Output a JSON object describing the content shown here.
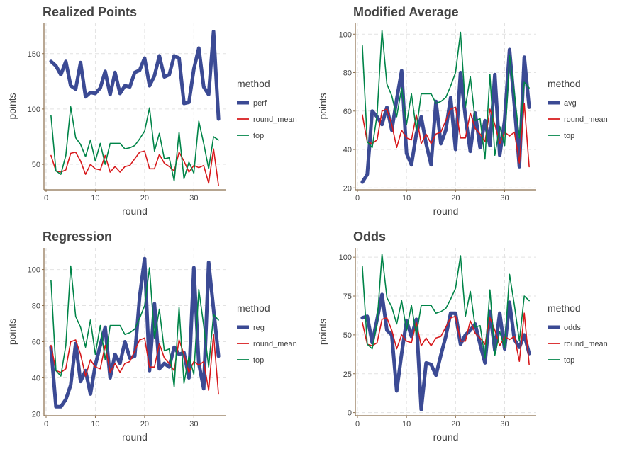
{
  "colors": {
    "primary": "#3b4a94",
    "round_mean": "#d7191c",
    "top": "#008448",
    "axis": "#8b6f4e",
    "grid": "#e2e2e2",
    "text": "#444444"
  },
  "chart_data": [
    {
      "type": "line",
      "title": "Realized Points",
      "xlabel": "round",
      "ylabel": "points",
      "xlim": [
        0,
        36
      ],
      "ylim": [
        27,
        178
      ],
      "xticks": [
        0,
        10,
        20,
        30
      ],
      "yticks": [
        50,
        100,
        150
      ],
      "grid": true,
      "legend": {
        "title": "method",
        "position": "right"
      },
      "x": [
        1,
        2,
        3,
        4,
        5,
        6,
        7,
        8,
        9,
        10,
        11,
        12,
        13,
        14,
        15,
        16,
        17,
        18,
        19,
        20,
        21,
        22,
        23,
        24,
        25,
        26,
        27,
        28,
        29,
        30,
        31,
        32,
        33,
        34,
        35
      ],
      "series": [
        {
          "name": "perf",
          "role": "primary",
          "values": [
            143,
            139,
            131,
            143,
            121,
            118,
            142,
            111,
            115,
            114,
            119,
            134,
            113,
            133,
            114,
            121,
            120,
            133,
            135,
            146,
            121,
            130,
            148,
            129,
            131,
            148,
            146,
            105,
            106,
            136,
            155,
            120,
            113,
            170,
            91
          ]
        },
        {
          "name": "round_mean",
          "role": "round_mean",
          "values": [
            58,
            44,
            43,
            45,
            60,
            61,
            53,
            41,
            50,
            46,
            45,
            58,
            43,
            48,
            43,
            48,
            49,
            55,
            61,
            62,
            46,
            46,
            59,
            51,
            48,
            44,
            61,
            53,
            43,
            49,
            47,
            49,
            33,
            64,
            31
          ]
        },
        {
          "name": "top",
          "role": "top",
          "values": [
            94,
            44,
            41,
            58,
            102,
            74,
            68,
            57,
            72,
            53,
            69,
            50,
            69,
            69,
            69,
            64,
            65,
            67,
            73,
            80,
            101,
            62,
            78,
            55,
            56,
            35,
            79,
            37,
            52,
            42,
            89,
            69,
            46,
            75,
            72
          ]
        }
      ]
    },
    {
      "type": "line",
      "title": "Modified Average",
      "xlabel": "round",
      "ylabel": "points",
      "xlim": [
        0,
        36
      ],
      "ylim": [
        19,
        106
      ],
      "xticks": [
        0,
        10,
        20,
        30
      ],
      "yticks": [
        20,
        40,
        60,
        80,
        100
      ],
      "grid": true,
      "legend": {
        "title": "method",
        "position": "right"
      },
      "x": [
        1,
        2,
        3,
        4,
        5,
        6,
        7,
        8,
        9,
        10,
        11,
        12,
        13,
        14,
        15,
        16,
        17,
        18,
        19,
        20,
        21,
        22,
        23,
        24,
        25,
        26,
        27,
        28,
        29,
        30,
        31,
        32,
        33,
        34,
        35
      ],
      "series": [
        {
          "name": "avg",
          "role": "primary",
          "values": [
            23,
            27,
            60,
            57,
            53,
            62,
            50,
            66,
            81,
            38,
            32,
            48,
            57,
            43,
            32,
            65,
            43,
            50,
            67,
            40,
            80,
            57,
            39,
            59,
            41,
            55,
            42,
            79,
            37,
            55,
            92,
            63,
            31,
            88,
            62
          ]
        },
        {
          "name": "round_mean",
          "role": "round_mean",
          "values": [
            58,
            44,
            43,
            45,
            60,
            61,
            53,
            41,
            50,
            46,
            45,
            58,
            43,
            48,
            43,
            48,
            49,
            55,
            61,
            62,
            46,
            46,
            59,
            51,
            48,
            44,
            61,
            53,
            43,
            49,
            47,
            49,
            33,
            64,
            31
          ]
        },
        {
          "name": "top",
          "role": "top",
          "values": [
            94,
            44,
            41,
            58,
            102,
            74,
            68,
            57,
            72,
            53,
            69,
            50,
            69,
            69,
            69,
            64,
            65,
            67,
            73,
            80,
            101,
            62,
            78,
            55,
            56,
            35,
            79,
            37,
            52,
            42,
            89,
            69,
            46,
            75,
            72
          ]
        }
      ]
    },
    {
      "type": "line",
      "title": "Regression",
      "xlabel": "round",
      "ylabel": "points",
      "xlim": [
        0,
        36
      ],
      "ylim": [
        19,
        112
      ],
      "xticks": [
        0,
        10,
        20,
        30
      ],
      "yticks": [
        20,
        40,
        60,
        80,
        100
      ],
      "grid": true,
      "legend": {
        "title": "method",
        "position": "right"
      },
      "x": [
        1,
        2,
        3,
        4,
        5,
        6,
        7,
        8,
        9,
        10,
        11,
        12,
        13,
        14,
        15,
        16,
        17,
        18,
        19,
        20,
        21,
        22,
        23,
        24,
        25,
        26,
        27,
        28,
        29,
        30,
        31,
        32,
        33,
        34,
        35
      ],
      "series": [
        {
          "name": "reg",
          "role": "primary",
          "values": [
            57,
            24,
            24,
            28,
            36,
            59,
            38,
            44,
            31,
            47,
            58,
            68,
            40,
            53,
            48,
            60,
            51,
            52,
            85,
            106,
            44,
            81,
            45,
            48,
            46,
            57,
            53,
            54,
            40,
            101,
            48,
            34,
            104,
            78,
            52
          ]
        },
        {
          "name": "round_mean",
          "role": "round_mean",
          "values": [
            58,
            44,
            43,
            45,
            60,
            61,
            53,
            41,
            50,
            46,
            45,
            58,
            43,
            48,
            43,
            48,
            49,
            55,
            61,
            62,
            46,
            46,
            59,
            51,
            48,
            44,
            61,
            53,
            43,
            49,
            47,
            49,
            33,
            64,
            31
          ]
        },
        {
          "name": "top",
          "role": "top",
          "values": [
            94,
            44,
            41,
            58,
            102,
            74,
            68,
            57,
            72,
            53,
            69,
            50,
            69,
            69,
            69,
            64,
            65,
            67,
            73,
            80,
            101,
            62,
            78,
            55,
            56,
            35,
            79,
            37,
            52,
            42,
            89,
            69,
            46,
            75,
            72
          ]
        }
      ]
    },
    {
      "type": "line",
      "title": "Odds",
      "xlabel": "round",
      "ylabel": "points",
      "xlim": [
        0,
        36
      ],
      "ylim": [
        -2,
        106
      ],
      "xticks": [
        0,
        10,
        20,
        30
      ],
      "yticks": [
        0,
        25,
        50,
        75,
        100
      ],
      "grid": true,
      "legend": {
        "title": "method",
        "position": "right"
      },
      "x": [
        1,
        2,
        3,
        4,
        5,
        6,
        7,
        8,
        9,
        10,
        11,
        12,
        13,
        14,
        15,
        16,
        17,
        18,
        19,
        20,
        21,
        22,
        23,
        24,
        25,
        26,
        27,
        28,
        29,
        30,
        31,
        32,
        33,
        34,
        35
      ],
      "series": [
        {
          "name": "odds",
          "role": "primary",
          "values": [
            61,
            62,
            45,
            60,
            76,
            53,
            50,
            14,
            38,
            59,
            49,
            60,
            2,
            32,
            31,
            24,
            37,
            49,
            64,
            64,
            44,
            50,
            53,
            57,
            44,
            32,
            65,
            40,
            64,
            41,
            71,
            47,
            42,
            50,
            38
          ]
        },
        {
          "name": "round_mean",
          "role": "round_mean",
          "values": [
            58,
            44,
            43,
            45,
            60,
            61,
            53,
            41,
            50,
            46,
            45,
            58,
            43,
            48,
            43,
            48,
            49,
            55,
            61,
            62,
            46,
            46,
            59,
            51,
            48,
            44,
            61,
            53,
            43,
            49,
            47,
            49,
            33,
            64,
            31
          ]
        },
        {
          "name": "top",
          "role": "top",
          "values": [
            94,
            44,
            41,
            58,
            102,
            74,
            68,
            57,
            72,
            53,
            69,
            50,
            69,
            69,
            69,
            64,
            65,
            67,
            73,
            80,
            101,
            62,
            78,
            55,
            56,
            35,
            79,
            37,
            52,
            42,
            89,
            69,
            46,
            75,
            72
          ]
        }
      ]
    }
  ]
}
